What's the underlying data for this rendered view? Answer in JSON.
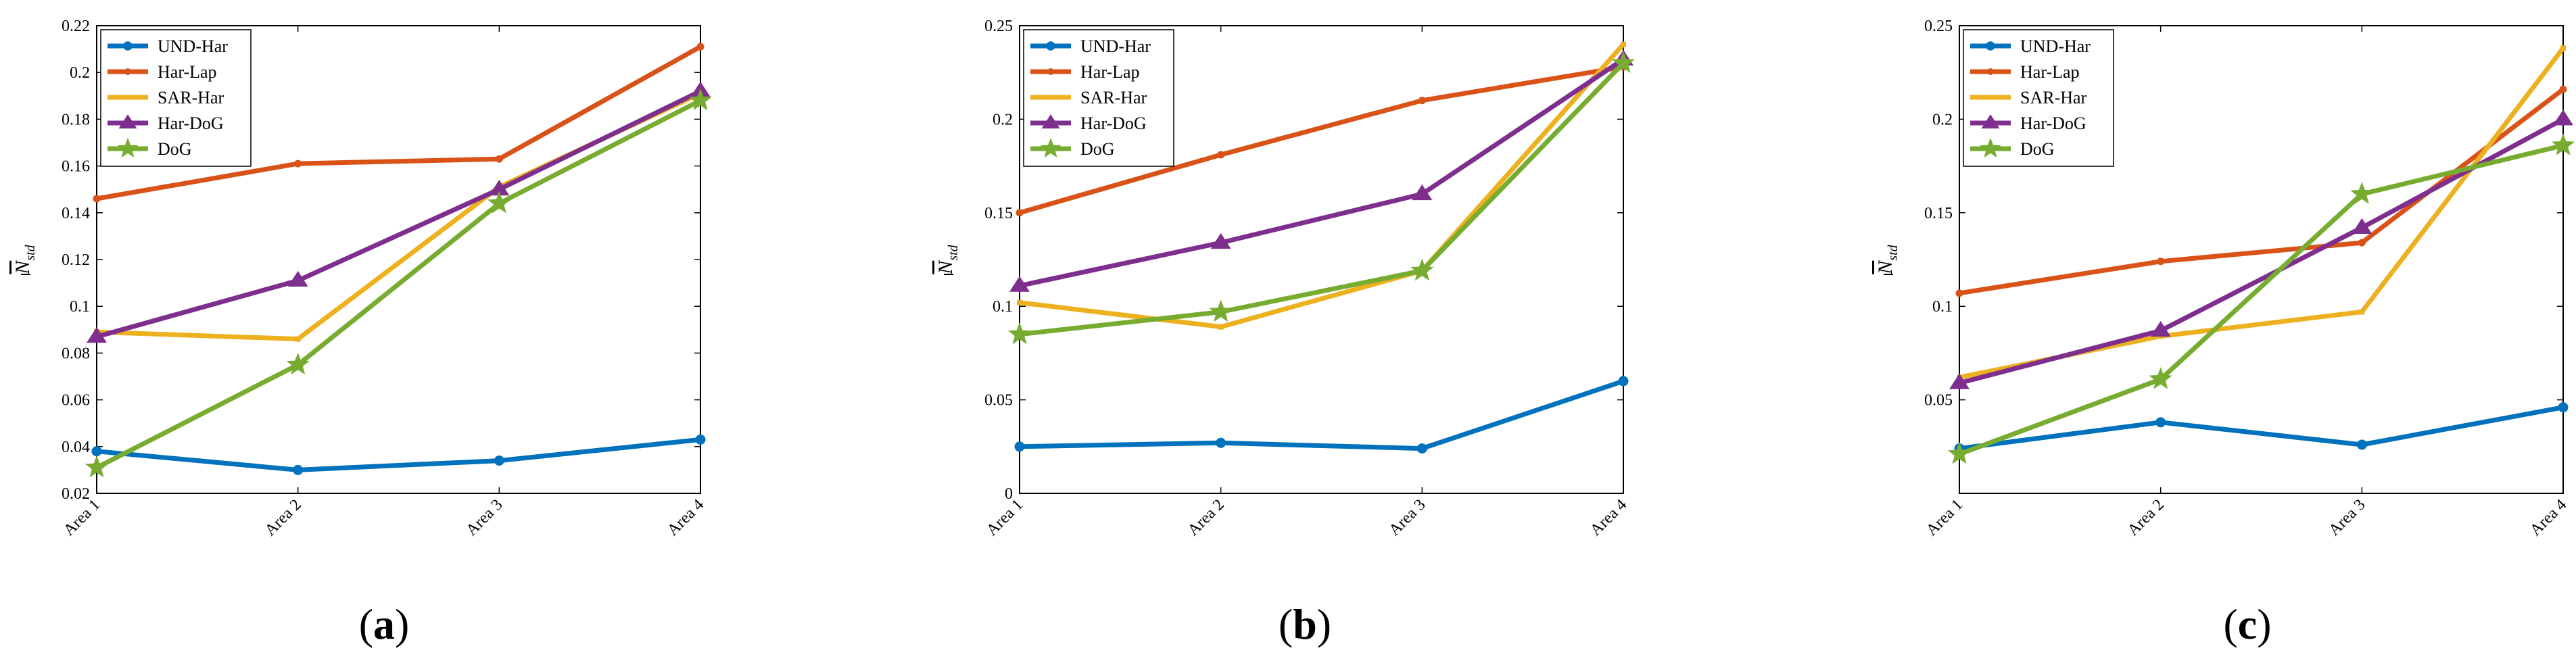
{
  "figure": {
    "series_styles": [
      {
        "name": "UND-Har",
        "color": "#0072BD",
        "marker": "circle"
      },
      {
        "name": "Har-Lap",
        "color": "#D95319",
        "marker": "dot"
      },
      {
        "name": "SAR-Har",
        "color": "#EDB120",
        "marker": "square"
      },
      {
        "name": "Har-DoG",
        "color": "#7E2F8E",
        "marker": "triangle"
      },
      {
        "name": "DoG",
        "color": "#77AC30",
        "marker": "star"
      }
    ]
  },
  "chart_data": [
    {
      "type": "line",
      "panel_label": "a",
      "title": "",
      "xlabel": "",
      "ylabel": "N",
      "ylabel_sub": "std",
      "categories": [
        "Area 1",
        "Area 2",
        "Area 3",
        "Area 4"
      ],
      "ylim": [
        0.02,
        0.22
      ],
      "yticks": [
        0.02,
        0.04,
        0.06,
        0.08,
        0.1,
        0.12,
        0.14,
        0.16,
        0.18,
        0.2,
        0.22
      ],
      "ytick_labels": [
        "0.02",
        "0.04",
        "0.06",
        "0.08",
        "0.1",
        "0.12",
        "0.14",
        "0.16",
        "0.18",
        "0.2",
        "0.22"
      ],
      "legend_position": "top-left",
      "grid": false,
      "series": [
        {
          "name": "UND-Har",
          "values": [
            0.038,
            0.03,
            0.034,
            0.043
          ]
        },
        {
          "name": "Har-Lap",
          "values": [
            0.146,
            0.161,
            0.163,
            0.211
          ]
        },
        {
          "name": "SAR-Har",
          "values": [
            0.089,
            0.086,
            0.151,
            0.191
          ]
        },
        {
          "name": "Har-DoG",
          "values": [
            0.087,
            0.111,
            0.15,
            0.192
          ]
        },
        {
          "name": "DoG",
          "values": [
            0.031,
            0.075,
            0.144,
            0.188
          ]
        }
      ]
    },
    {
      "type": "line",
      "panel_label": "b",
      "title": "",
      "xlabel": "",
      "ylabel": "N",
      "ylabel_sub": "std",
      "categories": [
        "Area 1",
        "Area 2",
        "Area 3",
        "Area 4"
      ],
      "ylim": [
        0,
        0.25
      ],
      "yticks": [
        0,
        0.05,
        0.1,
        0.15,
        0.2,
        0.25
      ],
      "ytick_labels": [
        "0",
        "0.05",
        "0.1",
        "0.15",
        "0.2",
        "0.25"
      ],
      "legend_position": "top-left",
      "grid": false,
      "series": [
        {
          "name": "UND-Har",
          "values": [
            0.025,
            0.027,
            0.024,
            0.06
          ]
        },
        {
          "name": "Har-Lap",
          "values": [
            0.15,
            0.181,
            0.21,
            0.228
          ]
        },
        {
          "name": "SAR-Har",
          "values": [
            0.102,
            0.089,
            0.119,
            0.24
          ]
        },
        {
          "name": "Har-DoG",
          "values": [
            0.111,
            0.134,
            0.16,
            0.232
          ]
        },
        {
          "name": "DoG",
          "values": [
            0.085,
            0.097,
            0.119,
            0.23
          ]
        }
      ]
    },
    {
      "type": "line",
      "panel_label": "c",
      "title": "",
      "xlabel": "",
      "ylabel": "N",
      "ylabel_sub": "std",
      "categories": [
        "Area 1",
        "Area 2",
        "Area 3",
        "Area 4"
      ],
      "ylim": [
        0,
        0.25
      ],
      "yticks": [
        0,
        0.05,
        0.1,
        0.15,
        0.2,
        0.25
      ],
      "ytick_labels": [
        "",
        "0.05",
        "0.1",
        "0.15",
        "0.2",
        "0.25"
      ],
      "legend_position": "top-left",
      "grid": false,
      "series": [
        {
          "name": "UND-Har",
          "values": [
            0.024,
            0.038,
            0.026,
            0.046
          ]
        },
        {
          "name": "Har-Lap",
          "values": [
            0.107,
            0.124,
            0.134,
            0.216
          ]
        },
        {
          "name": "SAR-Har",
          "values": [
            0.062,
            0.084,
            0.097,
            0.238
          ]
        },
        {
          "name": "Har-DoG",
          "values": [
            0.059,
            0.087,
            0.142,
            0.2
          ]
        },
        {
          "name": "DoG",
          "values": [
            0.021,
            0.061,
            0.16,
            0.186
          ]
        }
      ]
    }
  ]
}
